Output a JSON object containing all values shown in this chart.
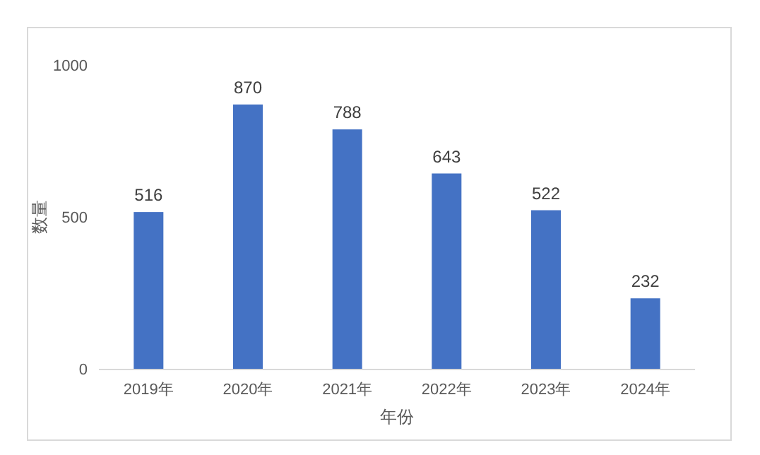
{
  "chart_data": {
    "type": "bar",
    "xlabel": "年份",
    "ylabel": "数量",
    "categories": [
      "2019年",
      "2020年",
      "2021年",
      "2022年",
      "2023年",
      "2024年"
    ],
    "values": [
      516,
      870,
      788,
      643,
      522,
      232
    ],
    "color": "#4472c4",
    "ylim": [
      0,
      1000
    ],
    "yticks": [
      0,
      500,
      1000
    ],
    "data_labels": true
  }
}
